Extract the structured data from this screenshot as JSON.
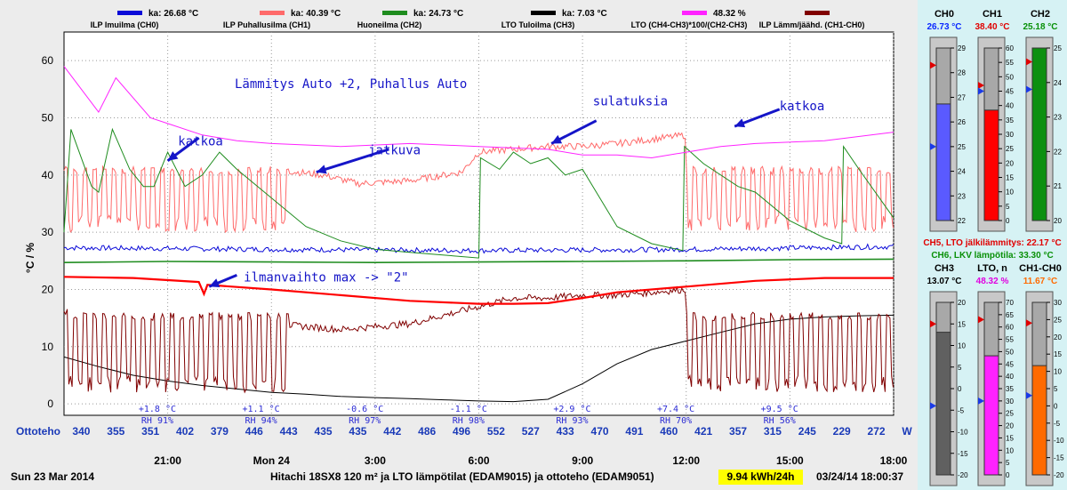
{
  "chart_data": {
    "type": "line",
    "title": "Lämmitys Auto +2, Puhallus Auto",
    "ylabel": "°C / %",
    "ylim": [
      -2,
      65
    ],
    "yticks": [
      0,
      10,
      20,
      30,
      40,
      50,
      60
    ],
    "x_unit": "hours since start of Sun 23 Mar 2014",
    "xlim": [
      18.0,
      42.0
    ],
    "xticks": [
      {
        "h": 21,
        "label": "21:00"
      },
      {
        "h": 24,
        "label": "Mon 24"
      },
      {
        "h": 27,
        "label": "3:00"
      },
      {
        "h": 30,
        "label": "6:00"
      },
      {
        "h": 33,
        "label": "9:00"
      },
      {
        "h": 36,
        "label": "12:00"
      },
      {
        "h": 39,
        "label": "15:00"
      },
      {
        "h": 42,
        "label": "18:00"
      }
    ],
    "legend": [
      {
        "name": "ILP Imuilma (CH0)",
        "stat": "ka: 26.68 °C",
        "color": "#0a0ad8"
      },
      {
        "name": "ILP Puhallusilma (CH1)",
        "stat": "ka: 40.39 °C",
        "color": "#ff6a6a"
      },
      {
        "name": "Huoneilma (CH2)",
        "stat": "ka: 24.73 °C",
        "color": "#1e8c1e"
      },
      {
        "name": "LTO Tuloilma (CH3)",
        "stat": "ka: 7.03 °C",
        "color": "#000000"
      },
      {
        "name": "LTO (CH4-CH3)*100/(CH2-CH3)",
        "stat": "48.32 %",
        "color": "#ff22ff"
      },
      {
        "name": "ILP Lämm/jäähd. (CH1-CH0)",
        "stat": "",
        "color": "#800000"
      }
    ],
    "series": [
      {
        "name": "ILP Imuilma (CH0)",
        "color": "#0a0ad8",
        "noise": 0.9,
        "points": [
          [
            18,
            27.3
          ],
          [
            24,
            27
          ],
          [
            30,
            26.8
          ],
          [
            36,
            27
          ],
          [
            42,
            27.5
          ]
        ]
      },
      {
        "name": "ILP Puhallusilma (CH1)",
        "color": "#ff6a6a",
        "osc": {
          "period": 0.28,
          "low": 30,
          "high": 41.5,
          "ranges": [
            [
              18.1,
              24.5
            ],
            [
              36.0,
              42.0
            ]
          ]
        },
        "points": [
          [
            18,
            41
          ],
          [
            24,
            41
          ],
          [
            25.5,
            40
          ],
          [
            26.5,
            38.5
          ],
          [
            28,
            39
          ],
          [
            29.5,
            40.5
          ],
          [
            30,
            44
          ],
          [
            31,
            44.5
          ],
          [
            32,
            45
          ],
          [
            33,
            45
          ],
          [
            34,
            45.5
          ],
          [
            36,
            47
          ],
          [
            42,
            47
          ]
        ]
      },
      {
        "name": "Huoneilma (CH2)",
        "color": "#1e8c1e",
        "points": [
          [
            18,
            30
          ],
          [
            18.2,
            48
          ],
          [
            18.8,
            38
          ],
          [
            19,
            37
          ],
          [
            19.4,
            48
          ],
          [
            19.9,
            41
          ],
          [
            20.3,
            38
          ],
          [
            20.6,
            38
          ],
          [
            21,
            44
          ],
          [
            21.5,
            38
          ],
          [
            22,
            40
          ],
          [
            22.5,
            44
          ],
          [
            23,
            41
          ],
          [
            24,
            36
          ],
          [
            25,
            31
          ],
          [
            26,
            28.5
          ],
          [
            27,
            27
          ],
          [
            28,
            26.5
          ],
          [
            29,
            26
          ],
          [
            30,
            25.5
          ],
          [
            30.05,
            43
          ],
          [
            30.6,
            41
          ],
          [
            31,
            44
          ],
          [
            31.5,
            42
          ],
          [
            32,
            43
          ],
          [
            32.5,
            40
          ],
          [
            33,
            41
          ],
          [
            34,
            31
          ],
          [
            35,
            28
          ],
          [
            35.9,
            26.8
          ],
          [
            35.95,
            45
          ],
          [
            36.5,
            42
          ],
          [
            37.5,
            38
          ],
          [
            38,
            37
          ],
          [
            39,
            32
          ],
          [
            40,
            29
          ],
          [
            40.5,
            28
          ],
          [
            40.55,
            45
          ],
          [
            41,
            41
          ],
          [
            42,
            32.5
          ]
        ]
      },
      {
        "name": "LTO Tuloilma (CH3)",
        "color": "#000000",
        "points": [
          [
            18,
            8.2
          ],
          [
            19,
            6.5
          ],
          [
            20,
            5
          ],
          [
            21,
            4
          ],
          [
            22,
            3.2
          ],
          [
            23,
            2.6
          ],
          [
            24,
            2
          ],
          [
            25,
            1.7
          ],
          [
            26,
            1.3
          ],
          [
            27,
            1.1
          ],
          [
            28,
            0.9
          ],
          [
            29,
            0.7
          ],
          [
            30,
            0.5
          ],
          [
            31,
            0.4
          ],
          [
            32,
            0.8
          ],
          [
            33,
            3.5
          ],
          [
            34,
            7
          ],
          [
            35,
            9.5
          ],
          [
            36,
            11
          ],
          [
            37,
            12.5
          ],
          [
            38,
            14
          ],
          [
            39,
            14.8
          ],
          [
            40,
            15.2
          ],
          [
            41,
            15.4
          ],
          [
            42,
            15.5
          ]
        ]
      },
      {
        "name": "LTO (CH4-CH3)*100/(CH2-CH3)",
        "color": "#ff22ff",
        "points": [
          [
            18,
            59
          ],
          [
            19,
            51
          ],
          [
            19.5,
            57
          ],
          [
            20.5,
            50
          ],
          [
            21,
            49
          ],
          [
            22,
            47
          ],
          [
            23,
            46
          ],
          [
            24,
            45.5
          ],
          [
            26,
            45
          ],
          [
            28,
            45.5
          ],
          [
            30,
            45
          ],
          [
            32,
            44.5
          ],
          [
            33,
            43.5
          ],
          [
            34,
            43.5
          ],
          [
            35,
            43
          ],
          [
            36,
            44
          ],
          [
            37,
            45
          ],
          [
            38,
            45.5
          ],
          [
            40,
            46
          ],
          [
            42,
            47.5
          ]
        ]
      },
      {
        "name": "ILP Lämm/jäähd. (CH1-CH0)",
        "color": "#800000",
        "osc": {
          "period": 0.28,
          "low": 2,
          "high": 16,
          "ranges": [
            [
              18.1,
              24.5
            ],
            [
              36.0,
              42.0
            ]
          ]
        },
        "points": [
          [
            18,
            16
          ],
          [
            24,
            14
          ],
          [
            26,
            13
          ],
          [
            28,
            14
          ],
          [
            30,
            17
          ],
          [
            31,
            18.5
          ],
          [
            32,
            18.5
          ],
          [
            33,
            19
          ],
          [
            34,
            19
          ],
          [
            36,
            20
          ],
          [
            38,
            20.5
          ],
          [
            40,
            19
          ],
          [
            42,
            13
          ]
        ]
      },
      {
        "name": "red thick (ILP line)",
        "color": "#ff0000",
        "width": 2.2,
        "points": [
          [
            18,
            22.2
          ],
          [
            20,
            22
          ],
          [
            21.9,
            21.3
          ],
          [
            22.05,
            19.2
          ],
          [
            22.15,
            20.8
          ],
          [
            24,
            20
          ],
          [
            26,
            19
          ],
          [
            28,
            18
          ],
          [
            30,
            17.5
          ],
          [
            31,
            17.5
          ],
          [
            32,
            17.6
          ],
          [
            33,
            18.5
          ],
          [
            34,
            19.5
          ],
          [
            36,
            20.5
          ],
          [
            38,
            21.5
          ],
          [
            40,
            22
          ],
          [
            42,
            22
          ]
        ]
      },
      {
        "name": "green thick",
        "color": "#1e8c1e",
        "width": 1.6,
        "points": [
          [
            18,
            24.7
          ],
          [
            21,
            24.9
          ],
          [
            24,
            24.8
          ],
          [
            27,
            24.7
          ],
          [
            30,
            24.8
          ],
          [
            33,
            24.9
          ],
          [
            36,
            25
          ],
          [
            39,
            25.2
          ],
          [
            42,
            25.3
          ]
        ]
      }
    ],
    "annotations": [
      {
        "text": "Lämmitys Auto +2, Puhallus Auto",
        "x": 26.3,
        "y": 55.2
      },
      {
        "text": "katkoa",
        "x": 21.3,
        "y": 45.2
      },
      {
        "text": "jatkuva",
        "x": 26.8,
        "y": 43.6
      },
      {
        "text": "sulatuksia",
        "x": 33.3,
        "y": 52.2
      },
      {
        "text": "katkoa",
        "x": 38.7,
        "y": 51.3
      },
      {
        "text": "ilmanvaihto max -> \"2\"",
        "x": 23.2,
        "y": 21.4
      }
    ],
    "arrows": [
      {
        "from": [
          21.9,
          46.5
        ],
        "to": [
          21.0,
          42.5
        ]
      },
      {
        "from": [
          27.4,
          44.5
        ],
        "to": [
          25.3,
          40.5
        ]
      },
      {
        "from": [
          33.4,
          49.5
        ],
        "to": [
          32.1,
          45.5
        ]
      },
      {
        "from": [
          38.7,
          51.5
        ],
        "to": [
          37.4,
          48.5
        ]
      },
      {
        "from": [
          23.0,
          22.5
        ],
        "to": [
          22.2,
          20.5
        ]
      }
    ],
    "weather": [
      {
        "t": "+1.8 °C",
        "rh": "RH 91%"
      },
      {
        "t": "+1.1 °C",
        "rh": "RH 94%"
      },
      {
        "t": "-0.6 °C",
        "rh": "RH 97%"
      },
      {
        "t": "-1.1 °C",
        "rh": "RH 98%"
      },
      {
        "t": "+2.9 °C",
        "rh": "RH 93%"
      },
      {
        "t": "+7.4 °C",
        "rh": "RH 70%"
      },
      {
        "t": "+9.5 °C",
        "rh": "RH 56%"
      }
    ],
    "ottoteho": {
      "label": "Ottoteho",
      "unit": "W",
      "values": [
        340,
        355,
        351,
        402,
        379,
        446,
        443,
        435,
        435,
        442,
        486,
        496,
        552,
        527,
        433,
        470,
        491,
        460,
        421,
        357,
        315,
        245,
        229,
        272
      ]
    }
  },
  "footer": {
    "date": "Sun 23 Mar 2014",
    "caption": "Hitachi 18SX8 120 m² ja LTO lämpötilat (EDAM9015) ja ottoteho (EDAM9051)",
    "kwh": "9.94  kWh/24h",
    "timestamp": "03/24/14 18:00:37"
  },
  "gauges_top": [
    {
      "name": "CH0",
      "value": "26.73 °C",
      "vcolor": "#0a28ff",
      "min": 22,
      "max": 29,
      "fill": 26.73,
      "fillcolor": "#5a5aff",
      "mark_red": 28.3,
      "mark_blue": 25
    },
    {
      "name": "CH1",
      "value": "38.40 °C",
      "vcolor": "#e00000",
      "min": 0,
      "max": 60,
      "fill": 38.4,
      "fillcolor": "#ff0000",
      "mark_red": 47,
      "mark_blue": 45
    },
    {
      "name": "CH2",
      "value": "25.18 °C",
      "vcolor": "#089008",
      "min": 20,
      "max": 25,
      "fill": 25.18,
      "fillcolor": "#0c9010",
      "mark_red": 24.6,
      "mark_blue": 23.8
    }
  ],
  "gauges_bottom": [
    {
      "name": "CH3",
      "value": "13.07 °C",
      "vcolor": "#000000",
      "min": -20,
      "max": 20,
      "fill": 13.07,
      "fillcolor": "#606060",
      "mark_red": 15,
      "mark_blue": -4
    },
    {
      "name": "LTO, n",
      "value": "48.32 %",
      "vcolor": "#e000e0",
      "min": 0,
      "max": 70,
      "fill": 48.32,
      "fillcolor": "#ff22ff",
      "mark_red": 63,
      "mark_blue": 30
    },
    {
      "name": "CH1-CH0",
      "value": "11.67 °C",
      "vcolor": "#ff6a00",
      "min": -20,
      "max": 30,
      "fill": 11.67,
      "fillcolor": "#ff6a00",
      "mark_red": 24,
      "mark_blue": 3
    }
  ],
  "info": [
    {
      "text": "CH5, LTO jälkilämmitys: 22.17 °C",
      "color": "#e00000"
    },
    {
      "text": "CH6, LKV lämpötila: 33.30 °C",
      "color": "#089008"
    }
  ]
}
